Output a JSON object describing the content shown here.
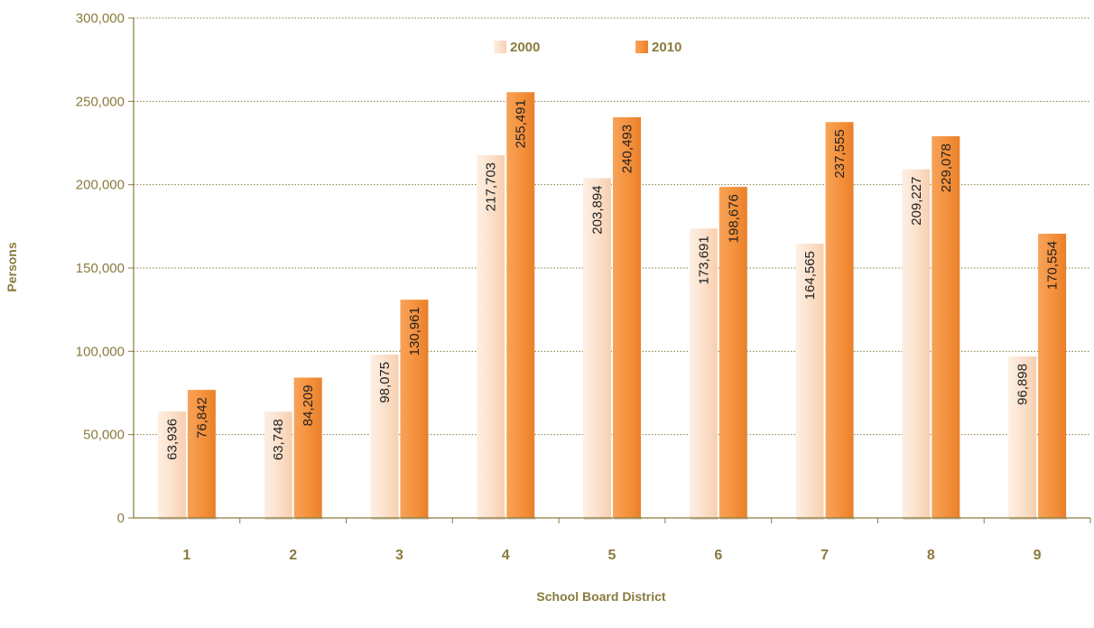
{
  "chart_data": {
    "type": "bar",
    "title": "",
    "xlabel": "School Board District",
    "ylabel": "Persons",
    "categories": [
      "1",
      "2",
      "3",
      "4",
      "5",
      "6",
      "7",
      "8",
      "9"
    ],
    "series": [
      {
        "name": "2000",
        "values": [
          63936,
          63748,
          98075,
          217703,
          203894,
          173691,
          164565,
          209227,
          96898
        ],
        "labels": [
          "63,936",
          "63,748",
          "98,075",
          "217,703",
          "203,894",
          "173,691",
          "164,565",
          "209,227",
          "96,898"
        ],
        "color": "#fbe1cc"
      },
      {
        "name": "2010",
        "values": [
          76842,
          84209,
          130961,
          255491,
          240493,
          198676,
          237555,
          229078,
          170554
        ],
        "labels": [
          "76,842",
          "84,209",
          "130,961",
          "255,491",
          "240,493",
          "198,676",
          "237,555",
          "229,078",
          "170,554"
        ],
        "color": "#f5923e"
      }
    ],
    "ylim": [
      0,
      300000
    ],
    "yticks": [
      0,
      50000,
      100000,
      150000,
      200000,
      250000,
      300000
    ],
    "ytick_labels": [
      "0",
      "50,000",
      "100,000",
      "150,000",
      "200,000",
      "250,000",
      "300,000"
    ],
    "grid": true,
    "legend_position": "top-center",
    "axis_color": "#8a7a3e",
    "grid_color": "#8a7a3e"
  }
}
